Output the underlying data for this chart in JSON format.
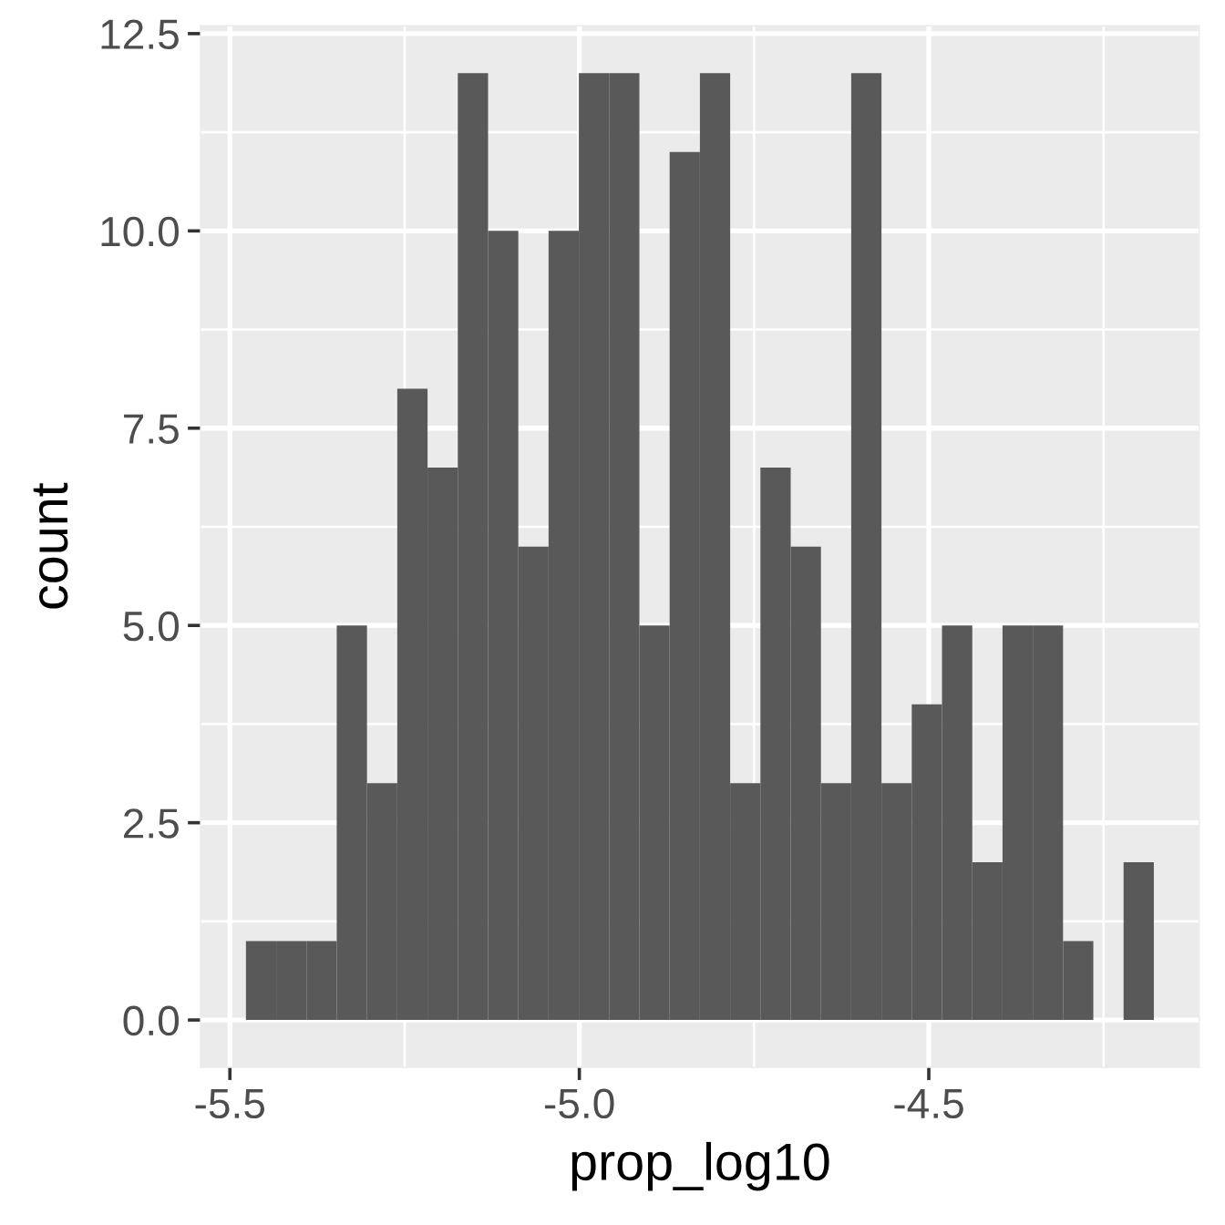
{
  "chart_data": {
    "type": "histogram",
    "xlabel": "prop_log10",
    "ylabel": "count",
    "bins": [
      -5.477,
      -5.4337,
      -5.3904,
      -5.3471,
      -5.3038,
      -5.2605,
      -5.2172,
      -5.1739,
      -5.1306,
      -5.0873,
      -5.044,
      -5.0007,
      -4.9574,
      -4.9141,
      -4.8708,
      -4.8275,
      -4.7842,
      -4.7409,
      -4.6976,
      -4.6543,
      -4.611,
      -4.5677,
      -4.5244,
      -4.4811,
      -4.4378,
      -4.3945,
      -4.3512,
      -4.3079,
      -4.2646,
      -4.2213,
      -4.178
    ],
    "values": [
      1,
      1,
      1,
      5,
      3,
      8,
      7,
      12,
      10,
      6,
      10,
      12,
      12,
      5,
      11,
      12,
      3,
      7,
      6,
      3,
      12,
      3,
      4,
      5,
      2,
      5,
      5,
      1,
      0,
      2
    ],
    "color": "#595959",
    "xlim": [
      -5.542,
      -4.113
    ],
    "ylim": [
      -0.6,
      12.6
    ],
    "xticks": [
      {
        "value": -5.5,
        "label": "-5.5"
      },
      {
        "value": -5.25,
        "label": null
      },
      {
        "value": -5,
        "label": "-5.0"
      },
      {
        "value": -4.75,
        "label": null
      },
      {
        "value": -4.5,
        "label": "-4.5"
      },
      {
        "value": -4.25,
        "label": null
      }
    ],
    "yticks": [
      {
        "value": 0,
        "label": "0.0"
      },
      {
        "value": 1.25,
        "label": null
      },
      {
        "value": 2.5,
        "label": "2.5"
      },
      {
        "value": 3.75,
        "label": null
      },
      {
        "value": 5,
        "label": "5.0"
      },
      {
        "value": 6.25,
        "label": null
      },
      {
        "value": 7.5,
        "label": "7.5"
      },
      {
        "value": 8.75,
        "label": null
      },
      {
        "value": 10,
        "label": "10.0"
      },
      {
        "value": 11.25,
        "label": null
      },
      {
        "value": 12.5,
        "label": "12.5"
      }
    ],
    "grid": true
  }
}
